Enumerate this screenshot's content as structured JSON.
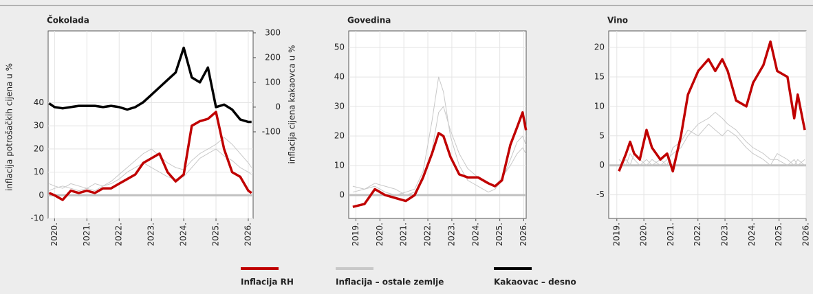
{
  "chart_data": [
    {
      "type": "line",
      "title": "Čokolada",
      "ylabel": "inflacija potrošačkih cijena u %",
      "y2label": "inflacija cijena kakaovca u %",
      "x": [
        2019.83,
        2020.0,
        2020.25,
        2020.5,
        2020.75,
        2021.0,
        2021.25,
        2021.5,
        2021.75,
        2022.0,
        2022.25,
        2022.5,
        2022.75,
        2023.0,
        2023.25,
        2023.5,
        2023.75,
        2024.0,
        2024.25,
        2024.5,
        2024.75,
        2025.0,
        2025.25,
        2025.5,
        2025.75,
        2026.0,
        2026.1
      ],
      "xlim": [
        2019.8,
        2026.15
      ],
      "xticks": [
        {
          "value": 2020,
          "label": "2020."
        },
        {
          "value": 2021,
          "label": "2021."
        },
        {
          "value": 2022,
          "label": "2022."
        },
        {
          "value": 2023,
          "label": "2023."
        },
        {
          "value": 2024,
          "label": "2024."
        },
        {
          "value": 2025,
          "label": "2025."
        },
        {
          "value": 2026,
          "label": "2026."
        }
      ],
      "ylim": [
        -10,
        71
      ],
      "yticks": [
        -10,
        0,
        10,
        20,
        30,
        40
      ],
      "y2lim": [
        -450,
        308
      ],
      "y2ticks": [
        -100,
        0,
        100,
        200,
        300
      ],
      "series": [
        {
          "color": "#c8c8c8",
          "values": [
            2,
            3,
            4,
            3,
            2,
            3,
            5,
            4,
            6,
            9,
            12,
            15,
            18,
            20,
            17,
            14,
            12,
            11,
            15,
            18,
            20,
            22,
            25,
            22,
            18,
            14,
            12
          ]
        },
        {
          "color": "#c8c8c8",
          "values": [
            5,
            4,
            3,
            5,
            4,
            3,
            2,
            4,
            5,
            7,
            10,
            12,
            14,
            12,
            10,
            8,
            7,
            8,
            12,
            16,
            18,
            20,
            17,
            15,
            12,
            10,
            9
          ]
        },
        {
          "color": "#c00000",
          "values": [
            1,
            0,
            -2,
            2,
            1,
            2,
            1,
            3,
            3,
            5,
            7,
            9,
            14,
            16,
            18,
            10,
            6,
            9,
            30,
            32,
            33,
            36,
            20,
            10,
            8,
            2,
            1
          ]
        },
        {
          "color": "#000000",
          "axis": "y2",
          "values": [
            15,
            0,
            -5,
            0,
            5,
            5,
            5,
            0,
            5,
            0,
            -10,
            0,
            20,
            50,
            80,
            110,
            140,
            240,
            120,
            100,
            160,
            0,
            10,
            -10,
            -50,
            -60,
            -60
          ]
        }
      ]
    },
    {
      "type": "line",
      "title": "Govedina",
      "x": [
        2018.87,
        2019.36,
        2019.79,
        2020.22,
        2020.65,
        2021.08,
        2021.45,
        2021.8,
        2022.17,
        2022.45,
        2022.65,
        2022.94,
        2023.31,
        2023.66,
        2024.09,
        2024.52,
        2024.8,
        2025.09,
        2025.44,
        2025.72,
        2025.95,
        2026.09
      ],
      "xlim": [
        2018.7,
        2026.1
      ],
      "xticks": [
        {
          "value": 2019,
          "label": "2019."
        },
        {
          "value": 2020,
          "label": "2020."
        },
        {
          "value": 2021,
          "label": "2021."
        },
        {
          "value": 2022,
          "label": "2022."
        },
        {
          "value": 2023,
          "label": "2023."
        },
        {
          "value": 2024,
          "label": "2024."
        },
        {
          "value": 2025,
          "label": "2025."
        },
        {
          "value": 2026,
          "label": "2026."
        }
      ],
      "ylim": [
        -7.9,
        55.6
      ],
      "yticks": [
        0,
        10,
        20,
        30,
        40,
        50
      ],
      "series": [
        {
          "color": "#c8c8c8",
          "values": [
            1,
            2,
            3,
            1,
            0,
            1,
            2,
            8,
            25,
            40,
            35,
            20,
            10,
            5,
            3,
            1,
            2,
            5,
            12,
            18,
            20,
            17
          ]
        },
        {
          "color": "#c8c8c8",
          "values": [
            3,
            2,
            4,
            3,
            2,
            0,
            1,
            5,
            15,
            28,
            30,
            22,
            14,
            9,
            6,
            4,
            3,
            6,
            10,
            14,
            16,
            14
          ]
        },
        {
          "color": "#c00000",
          "values": [
            -4,
            -3,
            2,
            0,
            -1,
            -2,
            0,
            6,
            14,
            21,
            20,
            13,
            7,
            6,
            6,
            4,
            3,
            5,
            17,
            23,
            28,
            22
          ]
        }
      ]
    },
    {
      "type": "line",
      "title": "Vino",
      "x": [
        2019.08,
        2019.34,
        2019.49,
        2019.64,
        2019.85,
        2020.1,
        2020.3,
        2020.61,
        2020.86,
        2021.07,
        2021.37,
        2021.63,
        2022.01,
        2022.39,
        2022.64,
        2022.9,
        2023.1,
        2023.41,
        2023.79,
        2024.04,
        2024.42,
        2024.68,
        2024.93,
        2025.31,
        2025.56,
        2025.69,
        2025.95
      ],
      "xlim": [
        2018.7,
        2026.0
      ],
      "xticks": [
        {
          "value": 2019,
          "label": "2019."
        },
        {
          "value": 2020,
          "label": "2020."
        },
        {
          "value": 2021,
          "label": "2021."
        },
        {
          "value": 2022,
          "label": "2022."
        },
        {
          "value": 2023,
          "label": "2023."
        },
        {
          "value": 2024,
          "label": "2024."
        },
        {
          "value": 2025,
          "label": "2025."
        },
        {
          "value": 2026,
          "label": "2026."
        }
      ],
      "ylim": [
        -9,
        22.8
      ],
      "yticks": [
        -5,
        0,
        5,
        10,
        15,
        20
      ],
      "series": [
        {
          "color": "#c8c8c8",
          "values": [
            0,
            1,
            0,
            2,
            1,
            0,
            1,
            0,
            1,
            2,
            3,
            5,
            7,
            8,
            9,
            8,
            7,
            6,
            4,
            3,
            2,
            1,
            1,
            0,
            1,
            0,
            1
          ]
        },
        {
          "color": "#c8c8c8",
          "values": [
            1,
            0,
            2,
            1,
            0,
            1,
            0,
            1,
            0,
            3,
            4,
            6,
            5,
            7,
            6,
            5,
            6,
            5,
            3,
            2,
            1,
            0,
            2,
            1,
            0,
            1,
            0
          ]
        },
        {
          "color": "#c00000",
          "values": [
            -1,
            2,
            4,
            2,
            1,
            6,
            3,
            1,
            2,
            -1,
            5,
            12,
            16,
            18,
            16,
            18,
            16,
            11,
            10,
            14,
            17,
            21,
            16,
            15,
            8,
            12,
            6
          ]
        }
      ]
    }
  ],
  "legend": [
    {
      "label": "Inflacija RH",
      "color": "#c00000"
    },
    {
      "label": "Inflacija – ostale zemlje",
      "color": "#c8c8c8"
    },
    {
      "label": "Kakaovac – desno",
      "color": "#000000"
    }
  ]
}
